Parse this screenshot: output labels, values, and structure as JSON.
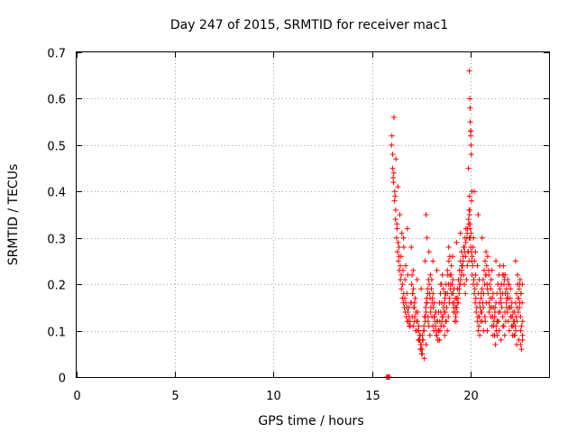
{
  "chart_data": {
    "type": "scatter",
    "title": "Day 247 of 2015, SRMTID for receiver mac1",
    "xlabel": "GPS time / hours",
    "ylabel": "SRMTID / TECUs",
    "xlim": [
      0,
      24
    ],
    "ylim": [
      0,
      0.7
    ],
    "xticks": [
      0,
      5,
      10,
      15,
      20
    ],
    "xtick_labels": [
      "0",
      "5",
      "10",
      "15",
      "20"
    ],
    "yticks": [
      0,
      0.1,
      0.2,
      0.3,
      0.4,
      0.5,
      0.6,
      0.7
    ],
    "ytick_labels": [
      "0",
      "0.1",
      "0.2",
      "0.3",
      "0.4",
      "0.5",
      "0.6",
      "0.7"
    ],
    "grid": true,
    "marker": "+",
    "color": "#ff0000",
    "series": [
      {
        "name": "mac1",
        "x": [
          15.75,
          15.8,
          15.85,
          15.9,
          16.0,
          16.05,
          16.1,
          16.15,
          16.2,
          16.25,
          16.3,
          16.35,
          16.4,
          16.45,
          16.5,
          16.55,
          16.6,
          16.65,
          16.7,
          16.75,
          16.8,
          16.85,
          16.9,
          16.95,
          16.02,
          16.06,
          16.11,
          16.16,
          16.21,
          16.27,
          16.33,
          16.38,
          16.44,
          16.49,
          16.55,
          16.61,
          16.67,
          16.72,
          16.78,
          16.83,
          16.89,
          16.94,
          16.12,
          16.22,
          16.32,
          16.42,
          16.52,
          16.62,
          16.72,
          16.82,
          16.08,
          16.18,
          16.28,
          16.38,
          16.48,
          16.58,
          16.68,
          16.78,
          16.88,
          16.98,
          16.6,
          16.8,
          17.0,
          17.0,
          17.05,
          17.1,
          17.15,
          17.2,
          17.25,
          17.3,
          17.35,
          17.4,
          17.45,
          17.5,
          17.55,
          17.6,
          17.65,
          17.7,
          17.75,
          17.8,
          17.85,
          17.9,
          17.95,
          17.02,
          17.08,
          17.13,
          17.18,
          17.23,
          17.28,
          17.33,
          17.38,
          17.43,
          17.48,
          17.53,
          17.58,
          17.63,
          17.68,
          17.73,
          17.78,
          17.83,
          17.88,
          17.93,
          17.98,
          17.04,
          17.11,
          17.17,
          17.24,
          17.31,
          17.37,
          17.44,
          17.51,
          17.57,
          17.64,
          17.71,
          17.77,
          17.84,
          17.91,
          17.97,
          17.06,
          17.16,
          17.26,
          17.36,
          17.46,
          17.56,
          17.66,
          17.76,
          17.86,
          17.96,
          17.1,
          17.3,
          17.5,
          17.7,
          17.9,
          17.75,
          17.8,
          18.0,
          18.05,
          18.1,
          18.15,
          18.2,
          18.25,
          18.3,
          18.35,
          18.4,
          18.45,
          18.5,
          18.55,
          18.6,
          18.65,
          18.7,
          18.75,
          18.8,
          18.85,
          18.9,
          18.95,
          18.02,
          18.08,
          18.13,
          18.18,
          18.23,
          18.28,
          18.33,
          18.38,
          18.43,
          18.48,
          18.53,
          18.58,
          18.63,
          18.68,
          18.73,
          18.78,
          18.83,
          18.88,
          18.93,
          18.98,
          18.04,
          18.11,
          18.17,
          18.24,
          18.31,
          18.37,
          18.44,
          18.51,
          18.57,
          18.64,
          18.71,
          18.77,
          18.84,
          18.91,
          18.97,
          18.06,
          18.16,
          18.26,
          18.36,
          18.46,
          18.56,
          18.66,
          18.76,
          18.86,
          18.96,
          18.1,
          18.3,
          18.5,
          18.7,
          18.9,
          19.0,
          19.05,
          19.1,
          19.15,
          19.2,
          19.25,
          19.3,
          19.35,
          19.4,
          19.45,
          19.5,
          19.55,
          19.6,
          19.65,
          19.7,
          19.75,
          19.8,
          19.85,
          19.9,
          19.95,
          19.02,
          19.08,
          19.13,
          19.18,
          19.23,
          19.28,
          19.33,
          19.38,
          19.43,
          19.48,
          19.53,
          19.58,
          19.63,
          19.68,
          19.73,
          19.78,
          19.83,
          19.88,
          19.93,
          19.98,
          19.04,
          19.11,
          19.17,
          19.24,
          19.31,
          19.37,
          19.44,
          19.51,
          19.57,
          19.64,
          19.71,
          19.77,
          19.84,
          19.91,
          19.97,
          19.06,
          19.16,
          19.26,
          19.36,
          19.46,
          19.56,
          19.66,
          19.76,
          19.86,
          19.96,
          19.1,
          19.3,
          19.5,
          19.7,
          19.9,
          19.95,
          19.97,
          19.99,
          20.0,
          20.01,
          20.02,
          20.03,
          20.04,
          20.05,
          20.06,
          20.08,
          19.92,
          19.94,
          19.96,
          19.98,
          20.0,
          20.02,
          20.04,
          20.06,
          20.08,
          20.1,
          20.1,
          20.15,
          20.2,
          20.25,
          20.3,
          20.35,
          20.4,
          20.45,
          20.5,
          20.55,
          20.6,
          20.65,
          20.7,
          20.75,
          20.8,
          20.85,
          20.9,
          20.95,
          20.12,
          20.18,
          20.23,
          20.28,
          20.33,
          20.38,
          20.43,
          20.48,
          20.53,
          20.58,
          20.63,
          20.68,
          20.73,
          20.78,
          20.83,
          20.88,
          20.93,
          20.98,
          20.14,
          20.21,
          20.27,
          20.34,
          20.41,
          20.47,
          20.54,
          20.61,
          20.67,
          20.74,
          20.81,
          20.87,
          20.94,
          20.16,
          20.26,
          20.36,
          20.46,
          20.56,
          20.66,
          20.76,
          20.86,
          20.96,
          20.2,
          20.4,
          20.6,
          20.8,
          21.0,
          21.05,
          21.1,
          21.15,
          21.2,
          21.25,
          21.3,
          21.35,
          21.4,
          21.45,
          21.5,
          21.55,
          21.6,
          21.65,
          21.7,
          21.75,
          21.8,
          21.85,
          21.9,
          21.95,
          21.02,
          21.08,
          21.13,
          21.18,
          21.23,
          21.28,
          21.33,
          21.38,
          21.43,
          21.48,
          21.53,
          21.58,
          21.63,
          21.68,
          21.73,
          21.78,
          21.83,
          21.88,
          21.93,
          21.98,
          21.04,
          21.11,
          21.17,
          21.24,
          21.31,
          21.37,
          21.44,
          21.51,
          21.57,
          21.64,
          21.71,
          21.77,
          21.84,
          21.91,
          21.97,
          21.06,
          21.16,
          21.26,
          21.36,
          21.46,
          21.56,
          21.66,
          21.76,
          21.86,
          21.96,
          21.1,
          21.3,
          21.5,
          21.7,
          21.9,
          22.0,
          22.05,
          22.1,
          22.15,
          22.2,
          22.25,
          22.3,
          22.35,
          22.4,
          22.45,
          22.5,
          22.55,
          22.6,
          22.65,
          22.02,
          22.08,
          22.13,
          22.18,
          22.23,
          22.28,
          22.33,
          22.38,
          22.43,
          22.48,
          22.53,
          22.58,
          22.63,
          22.04,
          22.11,
          22.17,
          22.24,
          22.31,
          22.37,
          22.44,
          22.51,
          22.57,
          22.64,
          22.06,
          22.16,
          22.26,
          22.36,
          22.46,
          22.56,
          22.66,
          22.3,
          22.4,
          22.5,
          22.55,
          22.6,
          22.65
        ],
        "y": [
          0.0,
          0.0,
          0.0,
          0.0,
          0.5,
          0.45,
          0.42,
          0.38,
          0.34,
          0.3,
          0.27,
          0.25,
          0.23,
          0.21,
          0.19,
          0.17,
          0.16,
          0.15,
          0.14,
          0.13,
          0.12,
          0.12,
          0.11,
          0.11,
          0.52,
          0.48,
          0.44,
          0.4,
          0.36,
          0.33,
          0.29,
          0.26,
          0.24,
          0.22,
          0.2,
          0.18,
          0.17,
          0.16,
          0.15,
          0.14,
          0.13,
          0.12,
          0.56,
          0.47,
          0.41,
          0.35,
          0.31,
          0.28,
          0.24,
          0.22,
          0.43,
          0.39,
          0.32,
          0.28,
          0.26,
          0.23,
          0.21,
          0.18,
          0.15,
          0.16,
          0.3,
          0.32,
          0.28,
          0.16,
          0.13,
          0.11,
          0.15,
          0.17,
          0.14,
          0.12,
          0.1,
          0.08,
          0.09,
          0.07,
          0.06,
          0.08,
          0.1,
          0.12,
          0.14,
          0.16,
          0.13,
          0.11,
          0.09,
          0.2,
          0.18,
          0.15,
          0.13,
          0.1,
          0.12,
          0.14,
          0.11,
          0.09,
          0.07,
          0.05,
          0.08,
          0.1,
          0.13,
          0.15,
          0.17,
          0.19,
          0.21,
          0.18,
          0.14,
          0.22,
          0.19,
          0.16,
          0.14,
          0.12,
          0.1,
          0.08,
          0.06,
          0.09,
          0.11,
          0.13,
          0.16,
          0.18,
          0.2,
          0.22,
          0.18,
          0.12,
          0.1,
          0.08,
          0.06,
          0.05,
          0.04,
          0.07,
          0.12,
          0.17,
          0.23,
          0.21,
          0.19,
          0.25,
          0.27,
          0.35,
          0.3,
          0.15,
          0.13,
          0.11,
          0.1,
          0.12,
          0.14,
          0.09,
          0.08,
          0.1,
          0.12,
          0.14,
          0.16,
          0.13,
          0.11,
          0.09,
          0.12,
          0.15,
          0.18,
          0.2,
          0.17,
          0.19,
          0.17,
          0.15,
          0.13,
          0.11,
          0.09,
          0.12,
          0.14,
          0.16,
          0.18,
          0.2,
          0.22,
          0.19,
          0.16,
          0.14,
          0.12,
          0.1,
          0.13,
          0.16,
          0.19,
          0.21,
          0.18,
          0.16,
          0.14,
          0.12,
          0.1,
          0.08,
          0.11,
          0.13,
          0.15,
          0.17,
          0.2,
          0.23,
          0.25,
          0.22,
          0.16,
          0.13,
          0.1,
          0.08,
          0.1,
          0.12,
          0.14,
          0.18,
          0.22,
          0.26,
          0.25,
          0.23,
          0.2,
          0.18,
          0.28,
          0.2,
          0.18,
          0.16,
          0.14,
          0.12,
          0.15,
          0.17,
          0.19,
          0.21,
          0.23,
          0.25,
          0.27,
          0.24,
          0.22,
          0.2,
          0.18,
          0.21,
          0.24,
          0.27,
          0.3,
          0.22,
          0.2,
          0.18,
          0.16,
          0.14,
          0.12,
          0.14,
          0.16,
          0.18,
          0.2,
          0.22,
          0.24,
          0.26,
          0.28,
          0.3,
          0.32,
          0.3,
          0.27,
          0.25,
          0.33,
          0.24,
          0.21,
          0.19,
          0.17,
          0.15,
          0.17,
          0.19,
          0.21,
          0.23,
          0.25,
          0.27,
          0.29,
          0.31,
          0.34,
          0.36,
          0.18,
          0.15,
          0.13,
          0.16,
          0.2,
          0.24,
          0.28,
          0.26,
          0.32,
          0.35,
          0.26,
          0.29,
          0.31,
          0.28,
          0.45,
          0.66,
          0.6,
          0.58,
          0.55,
          0.53,
          0.52,
          0.53,
          0.5,
          0.48,
          0.38,
          0.4,
          0.33,
          0.36,
          0.39,
          0.32,
          0.3,
          0.28,
          0.31,
          0.27,
          0.25,
          0.26,
          0.22,
          0.2,
          0.18,
          0.16,
          0.14,
          0.12,
          0.1,
          0.13,
          0.15,
          0.17,
          0.19,
          0.21,
          0.23,
          0.25,
          0.22,
          0.2,
          0.18,
          0.16,
          0.24,
          0.21,
          0.19,
          0.17,
          0.15,
          0.13,
          0.11,
          0.09,
          0.12,
          0.14,
          0.16,
          0.18,
          0.2,
          0.22,
          0.24,
          0.26,
          0.23,
          0.2,
          0.28,
          0.25,
          0.22,
          0.2,
          0.18,
          0.16,
          0.14,
          0.12,
          0.1,
          0.13,
          0.16,
          0.19,
          0.22,
          0.3,
          0.27,
          0.24,
          0.21,
          0.18,
          0.15,
          0.12,
          0.1,
          0.14,
          0.4,
          0.35,
          0.3,
          0.27,
          0.15,
          0.13,
          0.11,
          0.09,
          0.12,
          0.14,
          0.16,
          0.18,
          0.2,
          0.22,
          0.19,
          0.17,
          0.15,
          0.13,
          0.11,
          0.09,
          0.12,
          0.15,
          0.18,
          0.2,
          0.17,
          0.15,
          0.13,
          0.11,
          0.09,
          0.07,
          0.1,
          0.12,
          0.14,
          0.16,
          0.18,
          0.2,
          0.22,
          0.24,
          0.21,
          0.18,
          0.16,
          0.14,
          0.12,
          0.1,
          0.19,
          0.17,
          0.15,
          0.13,
          0.11,
          0.09,
          0.12,
          0.14,
          0.16,
          0.18,
          0.2,
          0.22,
          0.19,
          0.17,
          0.15,
          0.21,
          0.18,
          0.15,
          0.12,
          0.1,
          0.08,
          0.11,
          0.14,
          0.17,
          0.2,
          0.23,
          0.25,
          0.24,
          0.22,
          0.21,
          0.15,
          0.13,
          0.11,
          0.09,
          0.12,
          0.14,
          0.16,
          0.18,
          0.2,
          0.17,
          0.15,
          0.13,
          0.11,
          0.09,
          0.17,
          0.15,
          0.13,
          0.11,
          0.09,
          0.11,
          0.13,
          0.15,
          0.17,
          0.19,
          0.21,
          0.18,
          0.16,
          0.19,
          0.16,
          0.14,
          0.12,
          0.1,
          0.12,
          0.14,
          0.16,
          0.18,
          0.2,
          0.13,
          0.11,
          0.09,
          0.07,
          0.08,
          0.1,
          0.12,
          0.25,
          0.22,
          0.2,
          0.07,
          0.06,
          0.08
        ]
      }
    ]
  }
}
